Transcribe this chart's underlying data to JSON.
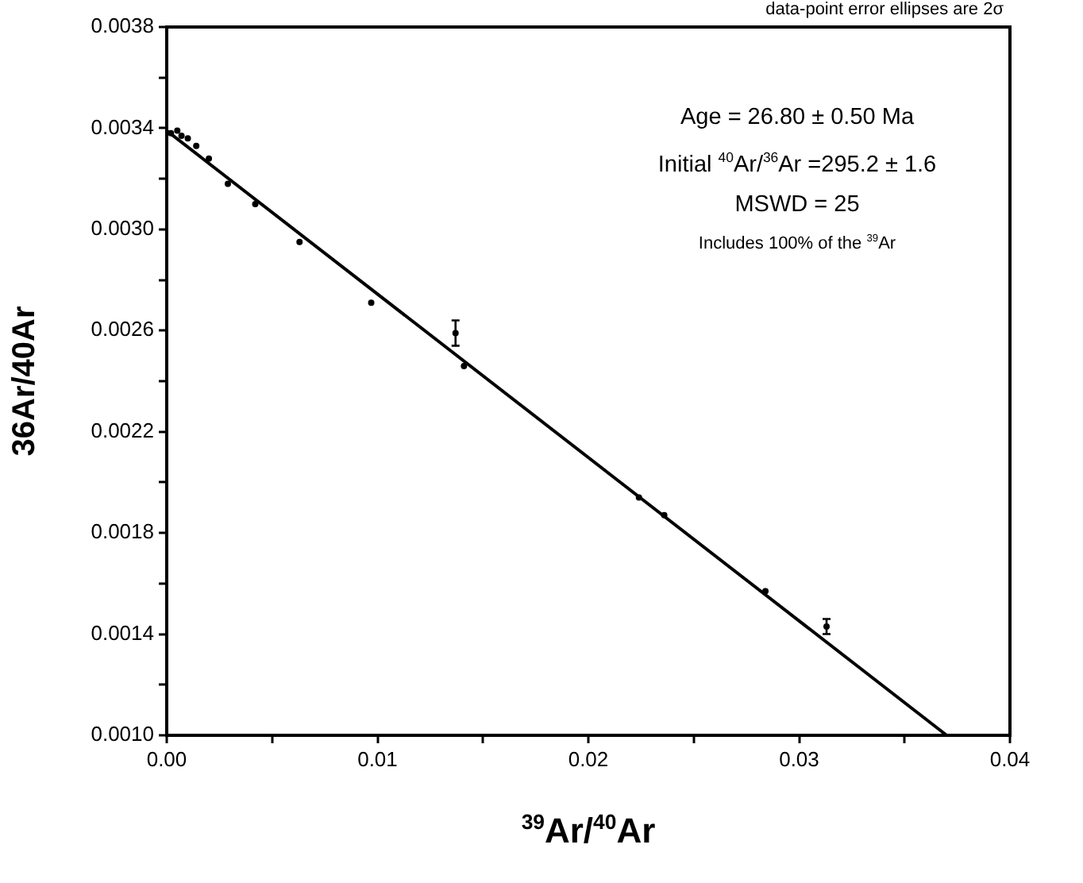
{
  "chart_data": {
    "type": "scatter",
    "xlabel": "$^{39}$Ar/$^{40}$Ar",
    "ylabel": "36Ar/40Ar",
    "annotations": [
      "data-point error ellipses are 2σ",
      "Age = 26.80 ± 0.50 Ma",
      "Initial $^{40}$Ar/$^{36}$Ar =295.2 ± 1.6",
      "MSWD = 25",
      "Includes 100% of the $^{39}$Ar"
    ],
    "xlim": [
      0,
      0.04
    ],
    "ylim": [
      0.001,
      0.0038
    ],
    "xticks": [
      {
        "value": 0,
        "label": "0.00"
      },
      {
        "value": 0.005,
        "label": null
      },
      {
        "value": 0.01,
        "label": "0.01"
      },
      {
        "value": 0.015,
        "label": null
      },
      {
        "value": 0.02,
        "label": "0.02"
      },
      {
        "value": 0.025,
        "label": null
      },
      {
        "value": 0.03,
        "label": "0.03"
      },
      {
        "value": 0.035,
        "label": null
      },
      {
        "value": 0.04,
        "label": "0.04"
      }
    ],
    "yticks": [
      {
        "value": 0.001,
        "label": "0.0010"
      },
      {
        "value": 0.0012,
        "label": null
      },
      {
        "value": 0.0014,
        "label": "0.0014"
      },
      {
        "value": 0.0016,
        "label": null
      },
      {
        "value": 0.0018,
        "label": "0.0018"
      },
      {
        "value": 0.002,
        "label": null
      },
      {
        "value": 0.0022,
        "label": "0.0022"
      },
      {
        "value": 0.0024,
        "label": null
      },
      {
        "value": 0.0026,
        "label": "0.0026"
      },
      {
        "value": 0.0028,
        "label": null
      },
      {
        "value": 0.003,
        "label": "0.0030"
      },
      {
        "value": 0.0032,
        "label": null
      },
      {
        "value": 0.0034,
        "label": "0.0034"
      },
      {
        "value": 0.0036,
        "label": null
      },
      {
        "value": 0.0038,
        "label": "0.0038"
      }
    ],
    "grid": false,
    "legend": false,
    "series": [
      {
        "color": "#000000",
        "marker": "circle",
        "x": [
          0.0002,
          0.0005,
          0.0007,
          0.001,
          0.0014,
          0.002,
          0.0029,
          0.0042,
          0.0063,
          0.0097,
          0.0137,
          0.0141,
          0.0224,
          0.0236,
          0.0284,
          0.0313
        ],
        "values": [
          0.00338,
          0.00339,
          0.00337,
          0.00336,
          0.00333,
          0.00328,
          0.00318,
          0.0031,
          0.00295,
          0.00271,
          0.00259,
          0.00246,
          0.00194,
          0.00187,
          0.00157,
          0.00143
        ],
        "errors": [
          null,
          null,
          null,
          null,
          null,
          null,
          null,
          null,
          null,
          null,
          5e-05,
          null,
          null,
          null,
          null,
          3e-05
        ]
      },
      {
        "type": "line",
        "color": "#000000",
        "x": [
          0,
          0.037
        ],
        "values": [
          0.00339,
          0.001
        ]
      }
    ]
  }
}
